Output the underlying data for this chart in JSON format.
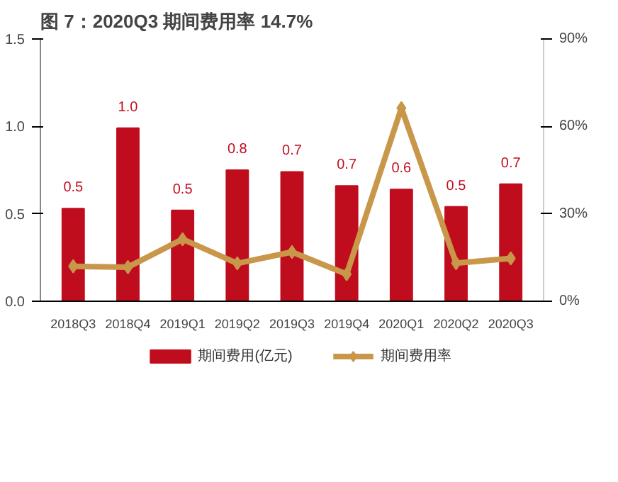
{
  "chart_data": {
    "type": "bar",
    "title": "图 7：2020Q3 期间费用率 14.7%",
    "categories": [
      "2018Q3",
      "2018Q4",
      "2019Q1",
      "2019Q2",
      "2019Q3",
      "2019Q4",
      "2020Q1",
      "2020Q2",
      "2020Q3"
    ],
    "series": [
      {
        "name": "期间费用(亿元)",
        "color": "#c00d1e",
        "values": [
          0.53,
          0.99,
          0.52,
          0.75,
          0.74,
          0.66,
          0.64,
          0.54,
          0.67
        ],
        "value_labels": [
          "0.5",
          "1.0",
          "0.5",
          "0.8",
          "0.7",
          "0.7",
          "0.6",
          "0.5",
          "0.7"
        ]
      },
      {
        "name": "期间费用率",
        "type": "line",
        "axis": "y2",
        "color": "#c8974a",
        "marker": "diamond",
        "values": [
          12.0,
          11.7,
          21.3,
          13.0,
          16.9,
          9.3,
          66.3,
          13.1,
          14.7
        ]
      }
    ],
    "ylim": [
      0,
      1.5
    ],
    "yticks": [
      {
        "value": 0,
        "label": "0.0"
      },
      0.5,
      {
        "value": 1,
        "label": "1.0"
      },
      1.5
    ],
    "y2lim": [
      0,
      90
    ],
    "y2ticks": [
      {
        "value": 0,
        "label": "0%"
      },
      {
        "value": 30,
        "label": "30%"
      },
      {
        "value": 60,
        "label": "60%"
      },
      {
        "value": 90,
        "label": "90%"
      }
    ],
    "legend": "bottom"
  }
}
